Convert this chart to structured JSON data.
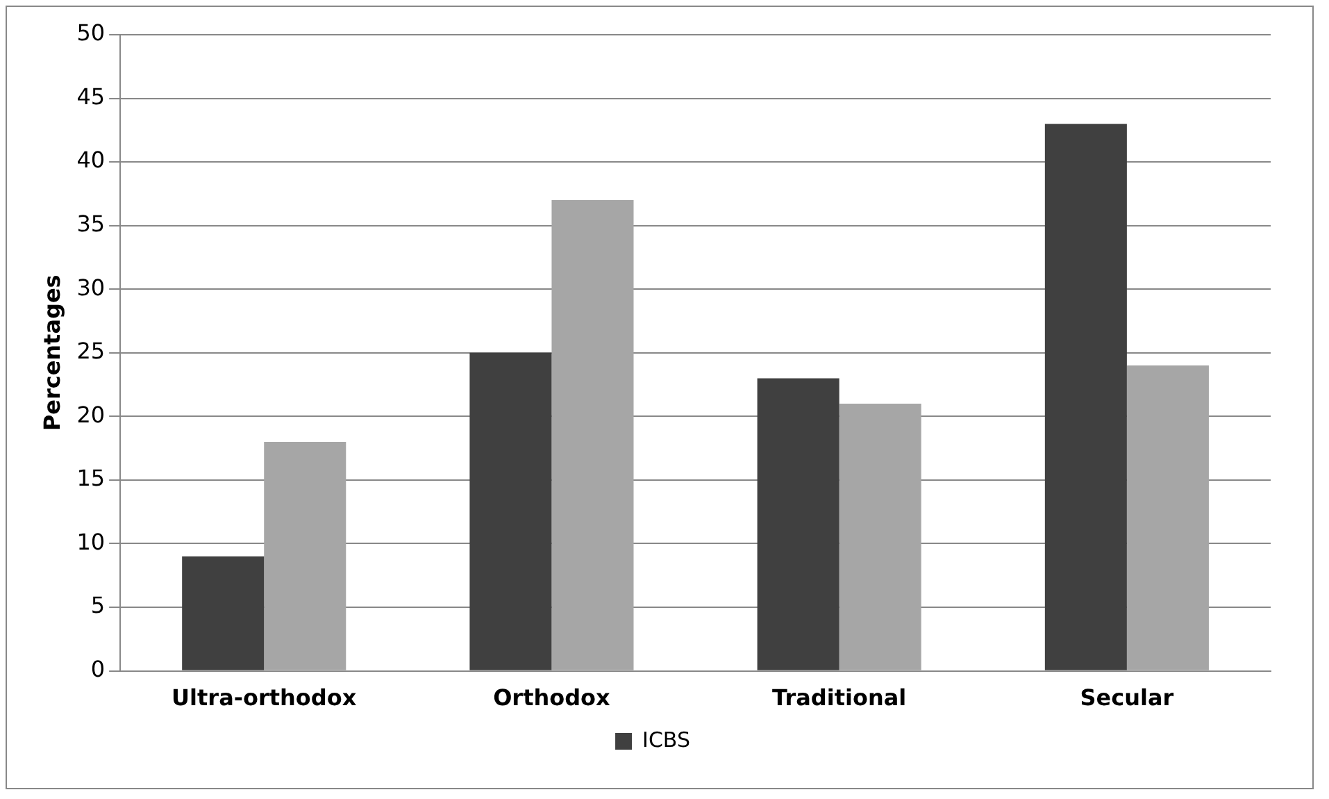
{
  "chart_data": {
    "type": "bar",
    "ylabel": "Percentages",
    "categories": [
      "Ultra-orthodox",
      "Orthodox",
      "Traditional",
      "Secular"
    ],
    "series": [
      {
        "name": "ICBS",
        "color": "#404040",
        "values": [
          9,
          25,
          23,
          43
        ]
      },
      {
        "color": "#a6a6a6",
        "values": [
          18,
          37,
          21,
          24
        ]
      }
    ],
    "ylim": [
      0,
      50
    ],
    "yticks": [
      0,
      5,
      10,
      15,
      20,
      25,
      30,
      35,
      40,
      45,
      50
    ],
    "grid": "y",
    "legend": "bottom"
  }
}
